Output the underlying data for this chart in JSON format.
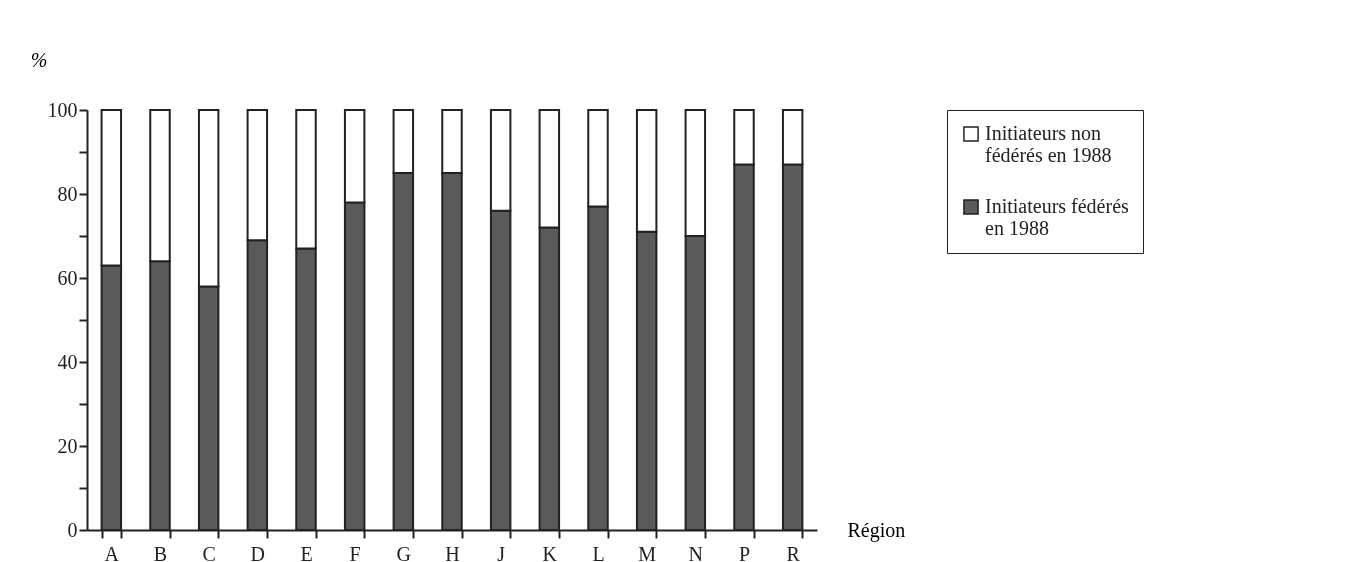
{
  "chart_data": {
    "type": "bar",
    "stacked": true,
    "xlabel": "Région",
    "ylabel": "%",
    "categories": [
      "A",
      "B",
      "C",
      "D",
      "E",
      "F",
      "G",
      "H",
      "J",
      "K",
      "L",
      "M",
      "N",
      "P",
      "R"
    ],
    "series": [
      {
        "name": "Initiateurs fédérés en 1988",
        "color": "#5a5a5a",
        "values": [
          63,
          64,
          58,
          69,
          67,
          78,
          85,
          85,
          76,
          72,
          77,
          71,
          70,
          87,
          87
        ]
      },
      {
        "name": "Initiateurs non fédérés en 1988",
        "color": "#ffffff",
        "values": [
          37,
          36,
          42,
          31,
          33,
          22,
          15,
          15,
          24,
          28,
          23,
          29,
          30,
          13,
          13
        ]
      }
    ],
    "ylim": [
      0,
      100
    ],
    "yticks": [
      0,
      {
        "value": 10,
        "label": null
      },
      20,
      {
        "value": 30,
        "label": null
      },
      40,
      {
        "value": 50,
        "label": null
      },
      60,
      {
        "value": 70,
        "label": null
      },
      80,
      {
        "value": 90,
        "label": null
      },
      100
    ],
    "grid": false,
    "legend": "right"
  }
}
